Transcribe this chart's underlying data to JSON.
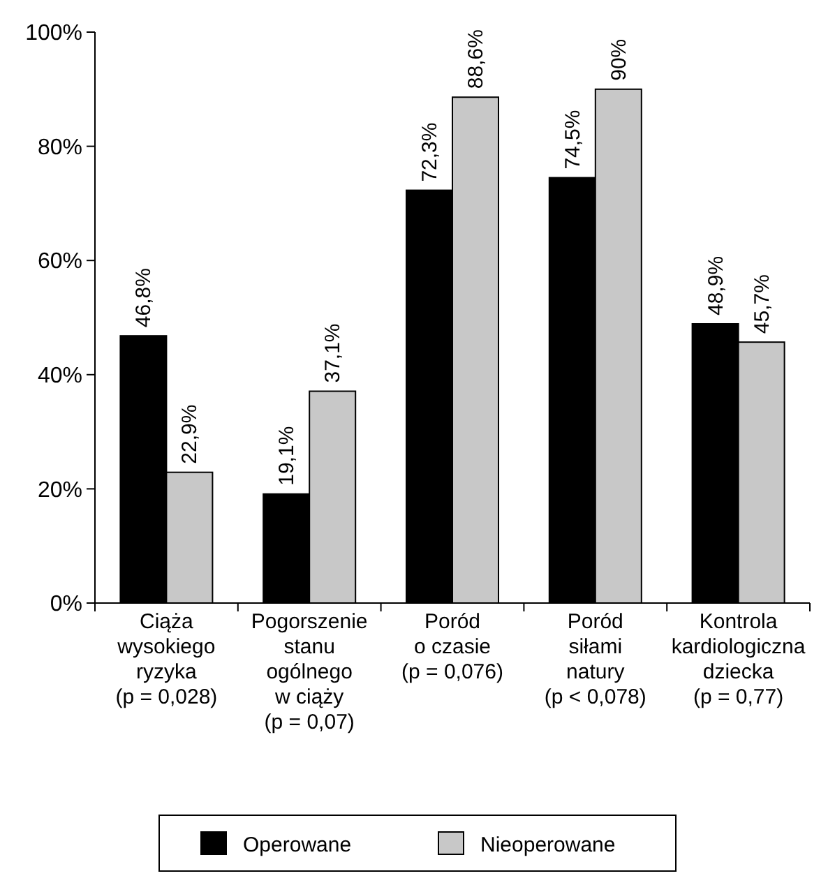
{
  "chart_data": {
    "type": "bar",
    "categories": [
      "Ciąża\nwysokiego\nryzyka\n(p = 0,028)",
      "Pogorszenie\nstanu\nogólnego\nw ciąży\n(p = 0,07)",
      "Poród\no czasie\n(p = 0,076)",
      "Poród\nsiłami\nnatury\n(p < 0,078)",
      "Kontrola\nkardiologiczna\ndziecka\n(p = 0,77)"
    ],
    "series": [
      {
        "name": "Operowane",
        "color": "#000000",
        "values": [
          46.8,
          19.1,
          72.3,
          74.5,
          48.9
        ],
        "value_labels": [
          "46,8%",
          "19,1%",
          "72,3%",
          "74,5%",
          "48,9%"
        ]
      },
      {
        "name": "Nieoperowane",
        "color": "#c8c8c8",
        "values": [
          22.9,
          37.1,
          88.6,
          90,
          45.7
        ],
        "value_labels": [
          "22,9%",
          "37,1%",
          "88,6%",
          "90%",
          "45,7%"
        ]
      }
    ],
    "ylim": [
      0,
      100
    ],
    "yticks": [
      {
        "value": 0,
        "label": "0%"
      },
      {
        "value": 20,
        "label": "20%"
      },
      {
        "value": 40,
        "label": "40%"
      },
      {
        "value": 60,
        "label": "60%"
      },
      {
        "value": 80,
        "label": "80%"
      },
      {
        "value": 100,
        "label": "100%"
      }
    ],
    "grid": false,
    "legend": "bottom"
  }
}
